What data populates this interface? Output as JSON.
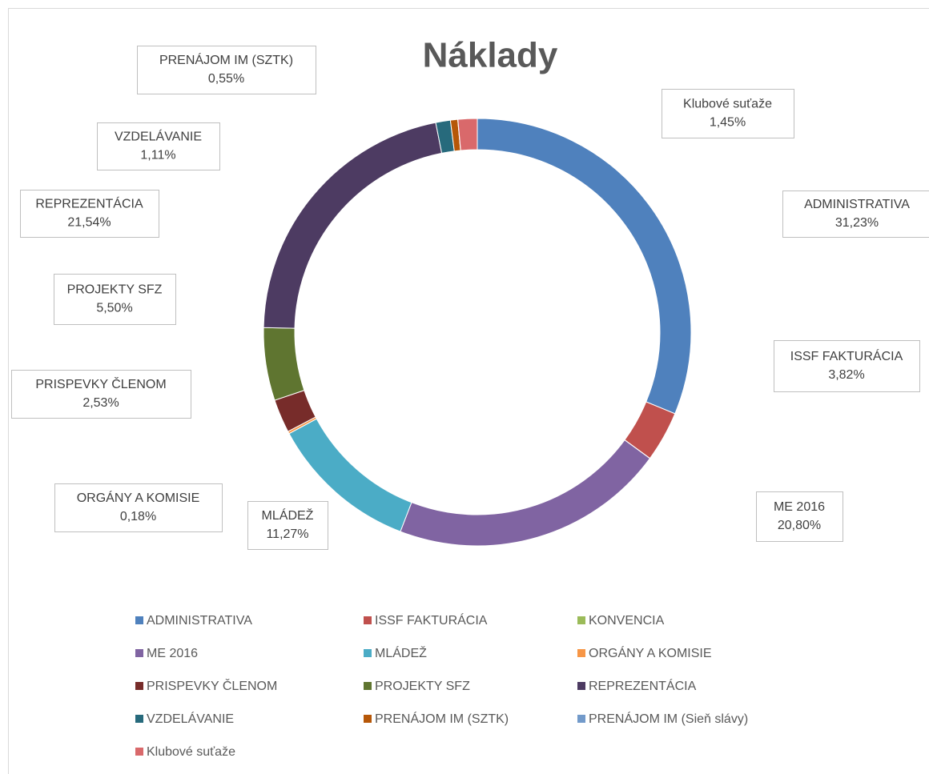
{
  "chart_data": {
    "type": "donut",
    "title": "Náklady",
    "categories": [
      "ADMINISTRATIVA",
      "ISSF FAKTURÁCIA",
      "KONVENCIA",
      "ME 2016",
      "MLÁDEŽ",
      "ORGÁNY A KOMISIE",
      "PRISPEVKY ČLENOM",
      "PROJEKTY SFZ",
      "REPREZENTÁCIA",
      "VZDELÁVANIE",
      "PRENÁJOM IM (SZTK)",
      "PRENÁJOM IM (Sieň slávy)",
      "Klubové suťaže"
    ],
    "values": [
      31.23,
      3.82,
      0.01,
      20.8,
      11.27,
      0.18,
      2.53,
      5.5,
      21.54,
      1.11,
      0.55,
      0.01,
      1.45
    ],
    "value_labels": [
      "31,23%",
      "3,82%",
      null,
      "20,80%",
      "11,27%",
      "0,18%",
      "2,53%",
      "5,50%",
      "21,54%",
      "1,11%",
      "0,55%",
      null,
      "1,45%"
    ],
    "colors": [
      "#4f81bd",
      "#c0504d",
      "#9bbb59",
      "#8064a2",
      "#4bacc6",
      "#f79646",
      "#772c2a",
      "#5f7530",
      "#4d3b62",
      "#276a7c",
      "#b65708",
      "#729aca",
      "#d9696b"
    ],
    "legend": "bottom"
  }
}
